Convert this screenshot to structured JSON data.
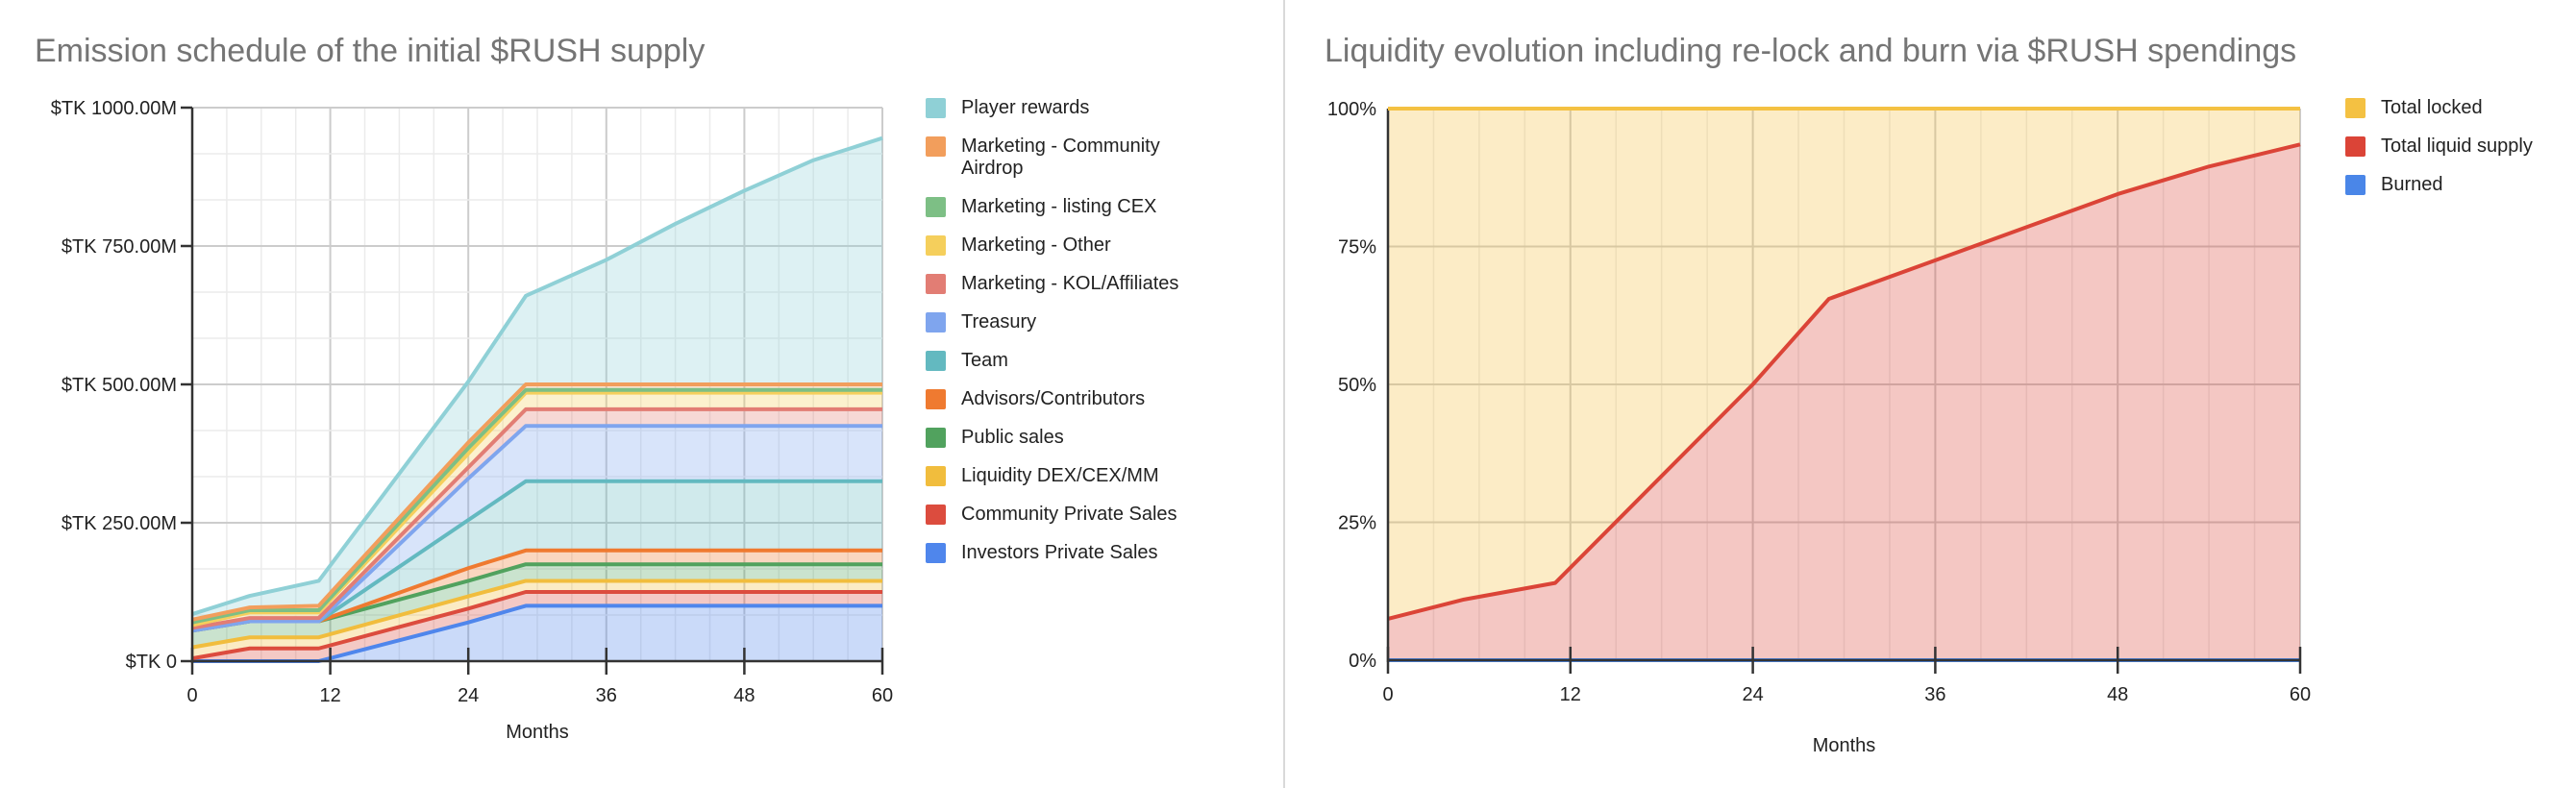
{
  "chart_data": [
    {
      "type": "area",
      "stacked": true,
      "title": "Emission schedule of the initial $RUSH supply",
      "xlabel": "Months",
      "ylabel": "",
      "xlim": [
        0,
        60
      ],
      "ylim": [
        0,
        1000
      ],
      "x_ticks": [
        "0",
        "12",
        "24",
        "36",
        "48",
        "60"
      ],
      "y_ticks": [
        "$TK 0",
        "$TK 250.00M",
        "$TK 500.00M",
        "$TK 750.00M",
        "$TK 1000.00M"
      ],
      "y_tick_values": [
        0,
        250,
        500,
        750,
        1000
      ],
      "grid": true,
      "legend_position": "right",
      "x": [
        0,
        5,
        11,
        24,
        29,
        36,
        42,
        48,
        54,
        60
      ],
      "series": [
        {
          "name": "Investors Private Sales",
          "color": "#4f86ec",
          "values": [
            0,
            0,
            0,
            70,
            100,
            100,
            100,
            100,
            100,
            100
          ]
        },
        {
          "name": "Community Private Sales",
          "color": "#dc4c3e",
          "values": [
            5,
            23,
            23,
            25,
            25,
            25,
            25,
            25,
            25,
            25
          ]
        },
        {
          "name": "Liquidity DEX/CEX/MM",
          "color": "#f1bd3d",
          "values": [
            20,
            20,
            20,
            22,
            20,
            20,
            20,
            20,
            20,
            20
          ]
        },
        {
          "name": "Public sales",
          "color": "#51a25e",
          "values": [
            30,
            29,
            29,
            28,
            30,
            30,
            30,
            30,
            30,
            30
          ]
        },
        {
          "name": "Advisors/Contributors",
          "color": "#ef7a30",
          "values": [
            0,
            0,
            0,
            23,
            25,
            25,
            25,
            25,
            25,
            25
          ]
        },
        {
          "name": "Team",
          "color": "#63b9c0",
          "values": [
            0,
            0,
            0,
            87,
            125,
            125,
            125,
            125,
            125,
            125
          ]
        },
        {
          "name": "Treasury",
          "color": "#7fa5ee",
          "values": [
            0,
            0,
            0,
            75,
            100,
            100,
            100,
            100,
            100,
            100
          ]
        },
        {
          "name": "Marketing - KOL/Affiliates",
          "color": "#e27d74",
          "values": [
            5,
            6,
            6,
            20,
            30,
            30,
            30,
            30,
            30,
            30
          ]
        },
        {
          "name": "Marketing - Other",
          "color": "#f5cf5c",
          "values": [
            5,
            10,
            10,
            25,
            30,
            30,
            30,
            30,
            30,
            30
          ]
        },
        {
          "name": "Marketing - listing CEX",
          "color": "#7dbf85",
          "values": [
            5,
            4,
            4,
            10,
            5,
            5,
            5,
            5,
            5,
            5
          ]
        },
        {
          "name": "Marketing - Community Airdrop",
          "color": "#f29e5c",
          "values": [
            5,
            5,
            8,
            10,
            10,
            10,
            10,
            10,
            10,
            10
          ]
        },
        {
          "name": "Player rewards",
          "color": "#8fd0d6",
          "values": [
            10,
            21,
            45,
            110,
            160,
            225,
            290,
            350,
            405,
            445
          ]
        }
      ]
    },
    {
      "type": "area",
      "stacked": true,
      "title": "Liquidity evolution including re-lock and burn via $RUSH spendings",
      "xlabel": "Months",
      "ylabel": "",
      "xlim": [
        0,
        60
      ],
      "ylim": [
        0,
        100
      ],
      "x_ticks": [
        "0",
        "12",
        "24",
        "36",
        "48",
        "60"
      ],
      "y_ticks": [
        "0%",
        "25%",
        "50%",
        "75%",
        "100%"
      ],
      "y_tick_values": [
        0,
        25,
        50,
        75,
        100
      ],
      "grid": true,
      "legend_position": "right",
      "x": [
        0,
        5,
        11,
        24,
        29,
        36,
        42,
        48,
        54,
        60
      ],
      "series": [
        {
          "name": "Burned",
          "color": "#4a86e8",
          "values": [
            0,
            0,
            0,
            0,
            0,
            0,
            0,
            0,
            0,
            0
          ]
        },
        {
          "name": "Total liquid supply",
          "color": "#db4437",
          "values": [
            7.5,
            11,
            14,
            50,
            65.5,
            72.5,
            78.5,
            84.5,
            89.5,
            93.5
          ]
        },
        {
          "name": "Total locked",
          "color": "#f4c142",
          "values": [
            92.5,
            89,
            86,
            50,
            34.5,
            27.5,
            21.5,
            15.5,
            10.5,
            6.5
          ]
        }
      ],
      "legend_order": [
        "Total locked",
        "Total liquid supply",
        "Burned"
      ]
    }
  ]
}
